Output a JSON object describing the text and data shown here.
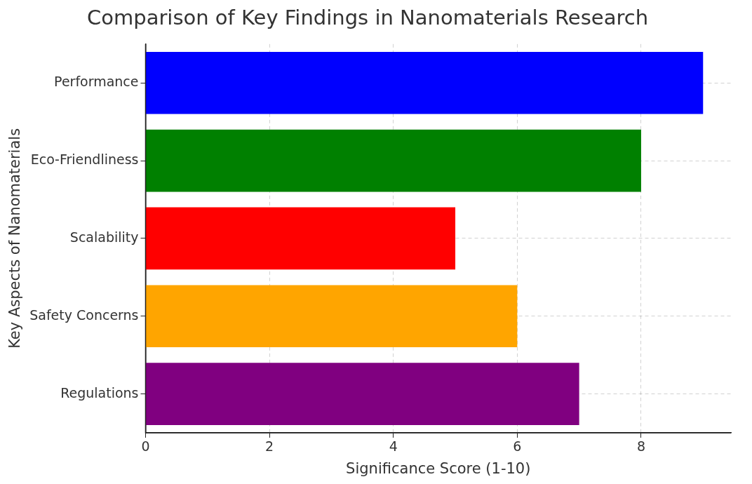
{
  "chart_data": {
    "type": "bar",
    "orientation": "horizontal",
    "title": "Comparison of Key Findings in Nanomaterials Research",
    "xlabel": "Significance Score (1-10)",
    "ylabel": "Key Aspects of Nanomaterials",
    "categories": [
      "Performance",
      "Eco-Friendliness",
      "Scalability",
      "Safety Concerns",
      "Regulations"
    ],
    "values": [
      9,
      8,
      5,
      6,
      7
    ],
    "colors": [
      "#0000ff",
      "#008000",
      "#ff0000",
      "#ffa500",
      "#800080"
    ],
    "xlim": [
      0,
      9.45
    ],
    "xticks": [
      0,
      2,
      4,
      6,
      8
    ],
    "grid": true,
    "legend": false
  }
}
